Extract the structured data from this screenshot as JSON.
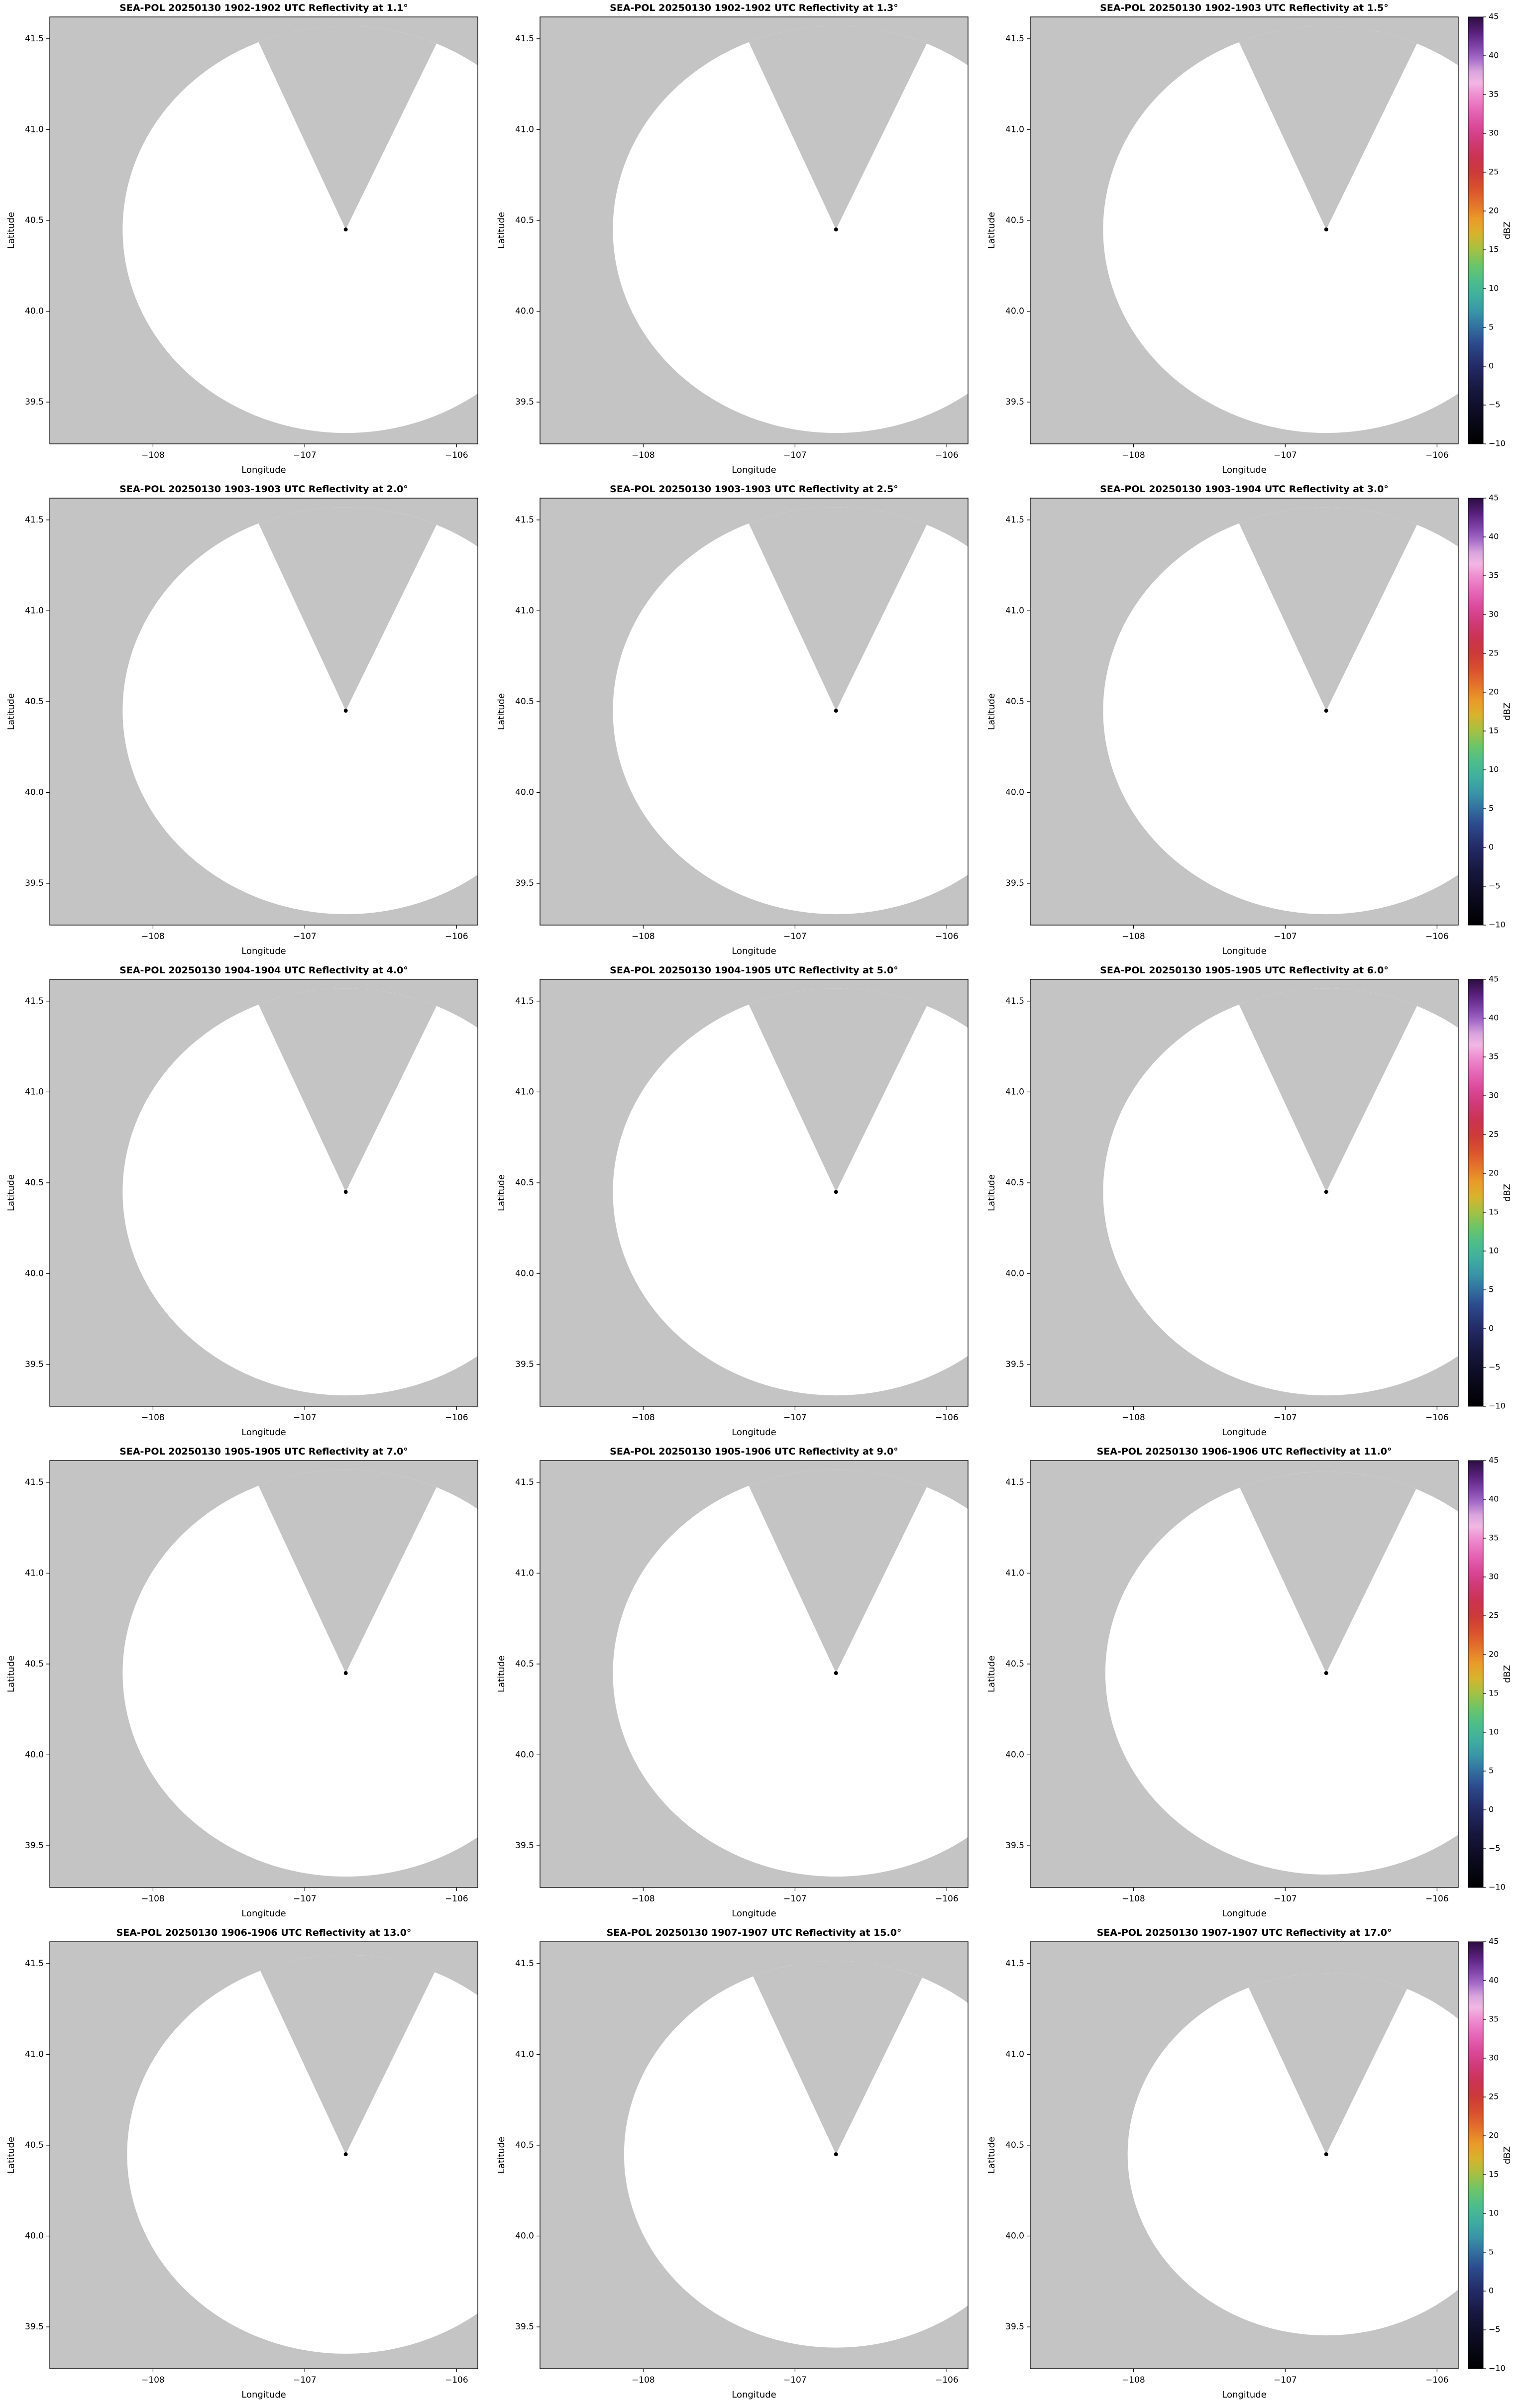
{
  "figure": {
    "xlabel": "Longitude",
    "ylabel": "Latitude",
    "x_tick_labels": [
      "−108",
      "−107",
      "−106"
    ],
    "y_tick_labels": [
      "41.5",
      "41.0",
      "40.5",
      "40.0",
      "39.5"
    ],
    "colors": {
      "no_data_gray": "#c4c4c4",
      "clear_air_white": "#ffffff",
      "marker_black": "#000000"
    },
    "colorbar": {
      "label": "dBZ",
      "tick_labels": [
        "45",
        "40",
        "35",
        "30",
        "25",
        "20",
        "15",
        "10",
        "5",
        "0",
        "−5",
        "−10"
      ],
      "vmin": -10,
      "vmax": 45,
      "gradient": [
        {
          "v": 45,
          "c": "#2a0e3f"
        },
        {
          "v": 43,
          "c": "#59207c"
        },
        {
          "v": 41,
          "c": "#8447ab"
        },
        {
          "v": 39.5,
          "c": "#a86fc9"
        },
        {
          "v": 38,
          "c": "#d9a3dd"
        },
        {
          "v": 36.5,
          "c": "#f2b7e3"
        },
        {
          "v": 35,
          "c": "#ee8fd0"
        },
        {
          "v": 33,
          "c": "#e668b8"
        },
        {
          "v": 31,
          "c": "#db4a9b"
        },
        {
          "v": 29,
          "c": "#d03a78"
        },
        {
          "v": 27,
          "c": "#cb3353"
        },
        {
          "v": 25,
          "c": "#cc3a39"
        },
        {
          "v": 23,
          "c": "#d94f2f"
        },
        {
          "v": 21,
          "c": "#e4712c"
        },
        {
          "v": 19,
          "c": "#e99a28"
        },
        {
          "v": 17,
          "c": "#d8b32c"
        },
        {
          "v": 15,
          "c": "#a3c144"
        },
        {
          "v": 13,
          "c": "#6cc46a"
        },
        {
          "v": 11,
          "c": "#4dbd8b"
        },
        {
          "v": 9,
          "c": "#3fae9f"
        },
        {
          "v": 7,
          "c": "#3a94a8"
        },
        {
          "v": 5,
          "c": "#336f9f"
        },
        {
          "v": 3,
          "c": "#2c4b8c"
        },
        {
          "v": 0,
          "c": "#232a66"
        },
        {
          "v": -3,
          "c": "#17173f"
        },
        {
          "v": -6,
          "c": "#0d0c22"
        },
        {
          "v": -10,
          "c": "#000000"
        }
      ]
    }
  },
  "panels": [
    {
      "title": "SEA-POL 20250130 1902-1902 UTC Reflectivity at 1.1°",
      "range_factor": 1.0
    },
    {
      "title": "SEA-POL 20250130 1902-1902 UTC Reflectivity at 1.3°",
      "range_factor": 1.0
    },
    {
      "title": "SEA-POL 20250130 1902-1903 UTC Reflectivity at 1.5°",
      "range_factor": 1.0
    },
    {
      "title": "SEA-POL 20250130 1903-1903 UTC Reflectivity at 2.0°",
      "range_factor": 1.0
    },
    {
      "title": "SEA-POL 20250130 1903-1903 UTC Reflectivity at 2.5°",
      "range_factor": 1.0
    },
    {
      "title": "SEA-POL 20250130 1903-1904 UTC Reflectivity at 3.0°",
      "range_factor": 1.0
    },
    {
      "title": "SEA-POL 20250130 1904-1904 UTC Reflectivity at 4.0°",
      "range_factor": 1.0
    },
    {
      "title": "SEA-POL 20250130 1904-1905 UTC Reflectivity at 5.0°",
      "range_factor": 1.0
    },
    {
      "title": "SEA-POL 20250130 1905-1905 UTC Reflectivity at 6.0°",
      "range_factor": 1.0
    },
    {
      "title": "SEA-POL 20250130 1905-1905 UTC Reflectivity at 7.0°",
      "range_factor": 1.0
    },
    {
      "title": "SEA-POL 20250130 1905-1906 UTC Reflectivity at 9.0°",
      "range_factor": 1.0
    },
    {
      "title": "SEA-POL 20250130 1906-1906 UTC Reflectivity at 11.0°",
      "range_factor": 0.99
    },
    {
      "title": "SEA-POL 20250130 1906-1906 UTC Reflectivity at 13.0°",
      "range_factor": 0.98
    },
    {
      "title": "SEA-POL 20250130 1907-1907 UTC Reflectivity at 15.0°",
      "range_factor": 0.95
    },
    {
      "title": "SEA-POL 20250130 1907-1907 UTC Reflectivity at 17.0°",
      "range_factor": 0.89
    }
  ],
  "chart_data": [
    {
      "type": "heatmap",
      "title": "SEA-POL 20250130 1902-1902 UTC Reflectivity at 1.1°",
      "radar": "SEA-POL",
      "date": "20250130",
      "time_utc": "1902-1902",
      "elevation_deg": 1.1,
      "xlabel": "Longitude",
      "ylabel": "Latitude",
      "xlim": [
        -108.68,
        -105.86
      ],
      "ylim": [
        39.27,
        41.62
      ],
      "x_ticks": [
        -108,
        -107,
        -106
      ],
      "y_ticks": [
        39.5,
        40.0,
        40.5,
        41.0,
        41.5
      ],
      "radar_location": {
        "lon": -106.73,
        "lat": 40.45
      },
      "colorbar": {
        "label": "dBZ",
        "min": -10,
        "max": 45,
        "tick_step": 5
      },
      "values": "no echoes visible (scan area blank/white); gray = no data (blocked sector toward N-NE and beyond max range)"
    },
    {
      "type": "heatmap",
      "title": "SEA-POL 20250130 1902-1902 UTC Reflectivity at 1.3°",
      "radar": "SEA-POL",
      "date": "20250130",
      "time_utc": "1902-1902",
      "elevation_deg": 1.3,
      "xlabel": "Longitude",
      "ylabel": "Latitude",
      "xlim": [
        -108.68,
        -105.86
      ],
      "ylim": [
        39.27,
        41.62
      ],
      "x_ticks": [
        -108,
        -107,
        -106
      ],
      "y_ticks": [
        39.5,
        40.0,
        40.5,
        41.0,
        41.5
      ],
      "radar_location": {
        "lon": -106.73,
        "lat": 40.45
      },
      "colorbar": {
        "label": "dBZ",
        "min": -10,
        "max": 45,
        "tick_step": 5
      },
      "values": "no echoes visible"
    },
    {
      "type": "heatmap",
      "title": "SEA-POL 20250130 1902-1903 UTC Reflectivity at 1.5°",
      "radar": "SEA-POL",
      "date": "20250130",
      "time_utc": "1902-1903",
      "elevation_deg": 1.5,
      "xlabel": "Longitude",
      "ylabel": "Latitude",
      "xlim": [
        -108.68,
        -105.86
      ],
      "ylim": [
        39.27,
        41.62
      ],
      "x_ticks": [
        -108,
        -107,
        -106
      ],
      "y_ticks": [
        39.5,
        40.0,
        40.5,
        41.0,
        41.5
      ],
      "radar_location": {
        "lon": -106.73,
        "lat": 40.45
      },
      "colorbar": {
        "label": "dBZ",
        "min": -10,
        "max": 45,
        "tick_step": 5
      },
      "values": "no echoes visible"
    },
    {
      "type": "heatmap",
      "title": "SEA-POL 20250130 1903-1903 UTC Reflectivity at 2.0°",
      "radar": "SEA-POL",
      "date": "20250130",
      "time_utc": "1903-1903",
      "elevation_deg": 2.0,
      "xlabel": "Longitude",
      "ylabel": "Latitude",
      "xlim": [
        -108.68,
        -105.86
      ],
      "ylim": [
        39.27,
        41.62
      ],
      "x_ticks": [
        -108,
        -107,
        -106
      ],
      "y_ticks": [
        39.5,
        40.0,
        40.5,
        41.0,
        41.5
      ],
      "radar_location": {
        "lon": -106.73,
        "lat": 40.45
      },
      "colorbar": {
        "label": "dBZ",
        "min": -10,
        "max": 45,
        "tick_step": 5
      },
      "values": "no echoes visible"
    },
    {
      "type": "heatmap",
      "title": "SEA-POL 20250130 1903-1903 UTC Reflectivity at 2.5°",
      "radar": "SEA-POL",
      "date": "20250130",
      "time_utc": "1903-1903",
      "elevation_deg": 2.5,
      "xlabel": "Longitude",
      "ylabel": "Latitude",
      "xlim": [
        -108.68,
        -105.86
      ],
      "ylim": [
        39.27,
        41.62
      ],
      "x_ticks": [
        -108,
        -107,
        -106
      ],
      "y_ticks": [
        39.5,
        40.0,
        40.5,
        41.0,
        41.5
      ],
      "radar_location": {
        "lon": -106.73,
        "lat": 40.45
      },
      "colorbar": {
        "label": "dBZ",
        "min": -10,
        "max": 45,
        "tick_step": 5
      },
      "values": "no echoes visible"
    },
    {
      "type": "heatmap",
      "title": "SEA-POL 20250130 1903-1904 UTC Reflectivity at 3.0°",
      "radar": "SEA-POL",
      "date": "20250130",
      "time_utc": "1903-1904",
      "elevation_deg": 3.0,
      "xlabel": "Longitude",
      "ylabel": "Latitude",
      "xlim": [
        -108.68,
        -105.86
      ],
      "ylim": [
        39.27,
        41.62
      ],
      "x_ticks": [
        -108,
        -107,
        -106
      ],
      "y_ticks": [
        39.5,
        40.0,
        40.5,
        41.0,
        41.5
      ],
      "radar_location": {
        "lon": -106.73,
        "lat": 40.45
      },
      "colorbar": {
        "label": "dBZ",
        "min": -10,
        "max": 45,
        "tick_step": 5
      },
      "values": "no echoes visible"
    },
    {
      "type": "heatmap",
      "title": "SEA-POL 20250130 1904-1904 UTC Reflectivity at 4.0°",
      "radar": "SEA-POL",
      "date": "20250130",
      "time_utc": "1904-1904",
      "elevation_deg": 4.0,
      "xlabel": "Longitude",
      "ylabel": "Latitude",
      "xlim": [
        -108.68,
        -105.86
      ],
      "ylim": [
        39.27,
        41.62
      ],
      "x_ticks": [
        -108,
        -107,
        -106
      ],
      "y_ticks": [
        39.5,
        40.0,
        40.5,
        41.0,
        41.5
      ],
      "radar_location": {
        "lon": -106.73,
        "lat": 40.45
      },
      "colorbar": {
        "label": "dBZ",
        "min": -10,
        "max": 45,
        "tick_step": 5
      },
      "values": "no echoes visible"
    },
    {
      "type": "heatmap",
      "title": "SEA-POL 20250130 1904-1905 UTC Reflectivity at 5.0°",
      "radar": "SEA-POL",
      "date": "20250130",
      "time_utc": "1904-1905",
      "elevation_deg": 5.0,
      "xlabel": "Longitude",
      "ylabel": "Latitude",
      "xlim": [
        -108.68,
        -105.86
      ],
      "ylim": [
        39.27,
        41.62
      ],
      "x_ticks": [
        -108,
        -107,
        -106
      ],
      "y_ticks": [
        39.5,
        40.0,
        40.5,
        41.0,
        41.5
      ],
      "radar_location": {
        "lon": -106.73,
        "lat": 40.45
      },
      "colorbar": {
        "label": "dBZ",
        "min": -10,
        "max": 45,
        "tick_step": 5
      },
      "values": "no echoes visible"
    },
    {
      "type": "heatmap",
      "title": "SEA-POL 20250130 1905-1905 UTC Reflectivity at 6.0°",
      "radar": "SEA-POL",
      "date": "20250130",
      "time_utc": "1905-1905",
      "elevation_deg": 6.0,
      "xlabel": "Longitude",
      "ylabel": "Latitude",
      "xlim": [
        -108.68,
        -105.86
      ],
      "ylim": [
        39.27,
        41.62
      ],
      "x_ticks": [
        -108,
        -107,
        -106
      ],
      "y_ticks": [
        39.5,
        40.0,
        40.5,
        41.0,
        41.5
      ],
      "radar_location": {
        "lon": -106.73,
        "lat": 40.45
      },
      "colorbar": {
        "label": "dBZ",
        "min": -10,
        "max": 45,
        "tick_step": 5
      },
      "values": "no echoes visible"
    },
    {
      "type": "heatmap",
      "title": "SEA-POL 20250130 1905-1905 UTC Reflectivity at 7.0°",
      "radar": "SEA-POL",
      "date": "20250130",
      "time_utc": "1905-1905",
      "elevation_deg": 7.0,
      "xlabel": "Longitude",
      "ylabel": "Latitude",
      "xlim": [
        -108.68,
        -105.86
      ],
      "ylim": [
        39.27,
        41.62
      ],
      "x_ticks": [
        -108,
        -107,
        -106
      ],
      "y_ticks": [
        39.5,
        40.0,
        40.5,
        41.0,
        41.5
      ],
      "radar_location": {
        "lon": -106.73,
        "lat": 40.45
      },
      "colorbar": {
        "label": "dBZ",
        "min": -10,
        "max": 45,
        "tick_step": 5
      },
      "values": "no echoes visible"
    },
    {
      "type": "heatmap",
      "title": "SEA-POL 20250130 1905-1906 UTC Reflectivity at 9.0°",
      "radar": "SEA-POL",
      "date": "20250130",
      "time_utc": "1905-1906",
      "elevation_deg": 9.0,
      "xlabel": "Longitude",
      "ylabel": "Latitude",
      "xlim": [
        -108.68,
        -105.86
      ],
      "ylim": [
        39.27,
        41.62
      ],
      "x_ticks": [
        -108,
        -107,
        -106
      ],
      "y_ticks": [
        39.5,
        40.0,
        40.5,
        41.0,
        41.5
      ],
      "radar_location": {
        "lon": -106.73,
        "lat": 40.45
      },
      "colorbar": {
        "label": "dBZ",
        "min": -10,
        "max": 45,
        "tick_step": 5
      },
      "values": "no echoes visible"
    },
    {
      "type": "heatmap",
      "title": "SEA-POL 20250130 1906-1906 UTC Reflectivity at 11.0°",
      "radar": "SEA-POL",
      "date": "20250130",
      "time_utc": "1906-1906",
      "elevation_deg": 11.0,
      "xlabel": "Longitude",
      "ylabel": "Latitude",
      "xlim": [
        -108.68,
        -105.86
      ],
      "ylim": [
        39.27,
        41.62
      ],
      "x_ticks": [
        -108,
        -107,
        -106
      ],
      "y_ticks": [
        39.5,
        40.0,
        40.5,
        41.0,
        41.5
      ],
      "radar_location": {
        "lon": -106.73,
        "lat": 40.45
      },
      "colorbar": {
        "label": "dBZ",
        "min": -10,
        "max": 45,
        "tick_step": 5
      },
      "values": "no echoes visible"
    },
    {
      "type": "heatmap",
      "title": "SEA-POL 20250130 1906-1906 UTC Reflectivity at 13.0°",
      "radar": "SEA-POL",
      "date": "20250130",
      "time_utc": "1906-1906",
      "elevation_deg": 13.0,
      "xlabel": "Longitude",
      "ylabel": "Latitude",
      "xlim": [
        -108.68,
        -105.86
      ],
      "ylim": [
        39.27,
        41.62
      ],
      "x_ticks": [
        -108,
        -107,
        -106
      ],
      "y_ticks": [
        39.5,
        40.0,
        40.5,
        41.0,
        41.5
      ],
      "radar_location": {
        "lon": -106.73,
        "lat": 40.45
      },
      "colorbar": {
        "label": "dBZ",
        "min": -10,
        "max": 45,
        "tick_step": 5
      },
      "values": "no echoes visible; slightly smaller coverage circle (higher elevation)"
    },
    {
      "type": "heatmap",
      "title": "SEA-POL 20250130 1907-1907 UTC Reflectivity at 15.0°",
      "radar": "SEA-POL",
      "date": "20250130",
      "time_utc": "1907-1907",
      "elevation_deg": 15.0,
      "xlabel": "Longitude",
      "ylabel": "Latitude",
      "xlim": [
        -108.68,
        -105.86
      ],
      "ylim": [
        39.27,
        41.62
      ],
      "x_ticks": [
        -108,
        -107,
        -106
      ],
      "y_ticks": [
        39.5,
        40.0,
        40.5,
        41.0,
        41.5
      ],
      "radar_location": {
        "lon": -106.73,
        "lat": 40.45
      },
      "colorbar": {
        "label": "dBZ",
        "min": -10,
        "max": 45,
        "tick_step": 5
      },
      "values": "no echoes visible; smaller coverage circle"
    },
    {
      "type": "heatmap",
      "title": "SEA-POL 20250130 1907-1907 UTC Reflectivity at 17.0°",
      "radar": "SEA-POL",
      "date": "20250130",
      "time_utc": "1907-1907",
      "elevation_deg": 17.0,
      "xlabel": "Longitude",
      "ylabel": "Latitude",
      "xlim": [
        -108.68,
        -105.86
      ],
      "ylim": [
        39.27,
        41.62
      ],
      "x_ticks": [
        -108,
        -107,
        -106
      ],
      "y_ticks": [
        39.5,
        40.0,
        40.5,
        41.0,
        41.5
      ],
      "radar_location": {
        "lon": -106.73,
        "lat": 40.45
      },
      "colorbar": {
        "label": "dBZ",
        "min": -10,
        "max": 45,
        "tick_step": 5
      },
      "values": "no echoes visible; smallest coverage circle"
    }
  ]
}
